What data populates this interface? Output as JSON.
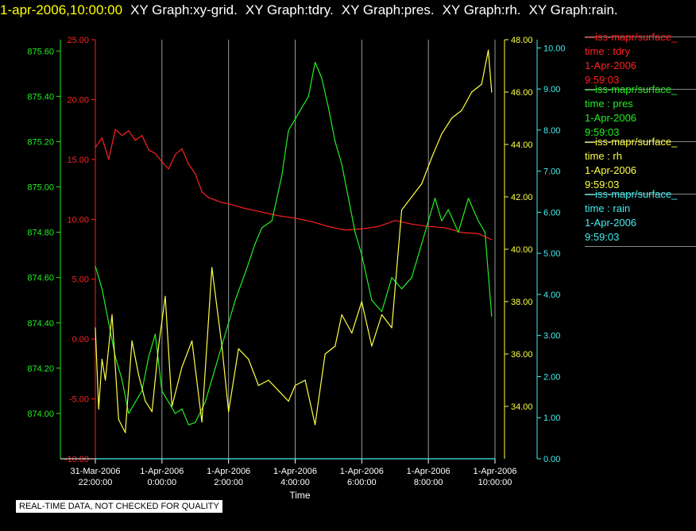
{
  "header": {
    "timestamp": "1-apr-2006,10:00:00",
    "graphs": [
      "XY Graph:xy-grid.",
      "XY Graph:tdry.",
      "XY Graph:pres.",
      "XY Graph:rh.",
      "XY Graph:rain."
    ]
  },
  "legend": [
    {
      "name": "iss-mapr/surface_",
      "var": "time : tdry",
      "date": "1-Apr-2006",
      "time": "9:59:03",
      "color": "#ff2020"
    },
    {
      "name": "iss-mapr/surface_",
      "var": "time : pres",
      "date": "1-Apr-2006",
      "time": "9:59:03",
      "color": "#22ee22"
    },
    {
      "name": "iss-mapr/surface_",
      "var": "time : rh",
      "date": "1-Apr-2006",
      "time": "9:59:03",
      "color": "#ffff44"
    },
    {
      "name": "iss-mapr/surface_",
      "var": "time : rain",
      "date": "1-Apr-2006",
      "time": "9:59:03",
      "color": "#44eeee"
    }
  ],
  "disclaimer": "REAL-TIME DATA, NOT CHECKED FOR QUALITY",
  "chart_data": {
    "type": "line",
    "xlabel": "Time",
    "x_ticks": [
      {
        "date": "31-Mar-2006",
        "time": "22:00:00"
      },
      {
        "date": "1-Apr-2006",
        "time": "0:00:00"
      },
      {
        "date": "1-Apr-2006",
        "time": "2:00:00"
      },
      {
        "date": "1-Apr-2006",
        "time": "4:00:00"
      },
      {
        "date": "1-Apr-2006",
        "time": "6:00:00"
      },
      {
        "date": "1-Apr-2006",
        "time": "8:00:00"
      },
      {
        "date": "1-Apr-2006",
        "time": "10:00:00"
      }
    ],
    "xlim_hours": [
      -2,
      10
    ],
    "grid": "vertical",
    "axes": {
      "tdry": {
        "color": "#ff2020",
        "range": [
          -10,
          25
        ],
        "ticks": [
          "-10.00",
          "-5.00",
          "0.00",
          "5.00",
          "10.00",
          "15.00",
          "20.00",
          "25.00"
        ]
      },
      "pres": {
        "color": "#22ee22",
        "range": [
          873.8,
          875.65
        ],
        "ticks": [
          "874.00",
          "874.20",
          "874.40",
          "874.60",
          "874.80",
          "875.00",
          "875.20",
          "875.40",
          "875.60"
        ]
      },
      "rh": {
        "color": "#ffff44",
        "range": [
          32,
          48
        ],
        "ticks": [
          "34.00",
          "36.00",
          "38.00",
          "40.00",
          "42.00",
          "44.00",
          "46.00",
          "48.00"
        ]
      },
      "rain": {
        "color": "#44eeee",
        "range": [
          0,
          10.2
        ],
        "ticks": [
          "0.00",
          "1.00",
          "2.00",
          "3.00",
          "4.00",
          "5.00",
          "6.00",
          "7.00",
          "8.00",
          "9.00",
          "10.00"
        ]
      }
    },
    "series": [
      {
        "name": "tdry",
        "axis": "tdry",
        "color": "#ff2020",
        "x": [
          -2,
          -1.8,
          -1.6,
          -1.4,
          -1.2,
          -1.0,
          -0.8,
          -0.6,
          -0.4,
          -0.2,
          0,
          0.2,
          0.4,
          0.6,
          0.8,
          1.0,
          1.2,
          1.4,
          1.6,
          1.8,
          2.0,
          2.5,
          3.0,
          3.5,
          4.0,
          4.5,
          5.0,
          5.5,
          6.0,
          6.5,
          7.0,
          7.5,
          8.0,
          8.5,
          9.0,
          9.5,
          9.9
        ],
        "y": [
          16.0,
          16.8,
          15.0,
          17.5,
          17.0,
          17.4,
          16.6,
          17.0,
          15.8,
          15.5,
          14.8,
          14.2,
          15.4,
          15.9,
          14.6,
          13.8,
          12.3,
          11.8,
          11.6,
          11.4,
          11.3,
          10.9,
          10.6,
          10.3,
          10.1,
          9.8,
          9.4,
          9.1,
          9.2,
          9.4,
          9.9,
          9.6,
          9.4,
          9.3,
          8.9,
          8.8,
          8.3
        ]
      },
      {
        "name": "pres",
        "axis": "pres",
        "color": "#22ee22",
        "x": [
          -2,
          -1.8,
          -1.6,
          -1.4,
          -1.2,
          -1.0,
          -0.8,
          -0.6,
          -0.4,
          -0.2,
          0,
          0.2,
          0.4,
          0.6,
          0.8,
          1.0,
          1.3,
          1.6,
          1.9,
          2.2,
          2.5,
          2.8,
          3.0,
          3.3,
          3.6,
          3.8,
          4.0,
          4.2,
          4.4,
          4.6,
          4.8,
          5.0,
          5.2,
          5.4,
          5.6,
          5.8,
          6.0,
          6.3,
          6.6,
          6.9,
          7.2,
          7.5,
          7.8,
          8.0,
          8.2,
          8.4,
          8.6,
          8.9,
          9.2,
          9.5,
          9.7,
          9.9
        ],
        "y": [
          874.65,
          874.55,
          874.4,
          874.25,
          874.15,
          874.0,
          874.05,
          874.1,
          874.25,
          874.35,
          874.1,
          874.05,
          874.0,
          874.02,
          873.95,
          873.96,
          874.05,
          874.2,
          874.35,
          874.5,
          874.62,
          874.75,
          874.82,
          874.85,
          875.05,
          875.25,
          875.3,
          875.35,
          875.4,
          875.55,
          875.48,
          875.35,
          875.2,
          875.1,
          874.95,
          874.8,
          874.7,
          874.5,
          874.45,
          874.6,
          874.55,
          874.6,
          874.75,
          874.85,
          874.95,
          874.85,
          874.9,
          874.8,
          874.95,
          874.85,
          874.8,
          874.43
        ]
      },
      {
        "name": "rh",
        "axis": "rh",
        "color": "#ffff44",
        "x": [
          -2,
          -1.9,
          -1.8,
          -1.7,
          -1.5,
          -1.3,
          -1.1,
          -0.9,
          -0.7,
          -0.5,
          -0.3,
          -0.1,
          0.1,
          0.3,
          0.6,
          0.9,
          1.2,
          1.5,
          1.8,
          2.0,
          2.3,
          2.6,
          2.9,
          3.2,
          3.5,
          3.8,
          4.0,
          4.3,
          4.6,
          4.9,
          5.2,
          5.4,
          5.7,
          6.0,
          6.3,
          6.6,
          6.9,
          7.2,
          7.5,
          7.8,
          8.1,
          8.4,
          8.7,
          9.0,
          9.3,
          9.6,
          9.8,
          9.9
        ],
        "y": [
          37.0,
          33.9,
          35.8,
          35.0,
          37.5,
          33.5,
          33.0,
          36.5,
          35.2,
          34.2,
          33.8,
          36.3,
          38.2,
          34.0,
          35.5,
          36.5,
          33.4,
          39.3,
          36.3,
          33.8,
          36.2,
          35.8,
          34.8,
          35.0,
          34.6,
          34.2,
          34.8,
          35.0,
          33.3,
          36.0,
          36.3,
          37.5,
          36.8,
          38.0,
          36.3,
          37.5,
          37.0,
          41.5,
          42.0,
          42.5,
          43.5,
          44.4,
          45.0,
          45.3,
          46.0,
          46.3,
          47.6,
          46.0
        ]
      },
      {
        "name": "rain",
        "axis": "rain",
        "color": "#44eeee",
        "x": [
          -2,
          10
        ],
        "y": [
          0,
          0
        ]
      }
    ]
  }
}
